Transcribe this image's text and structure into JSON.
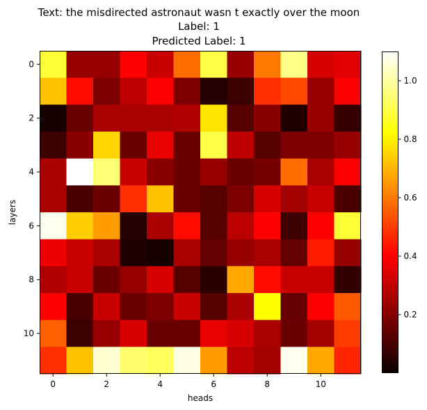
{
  "chart_data": {
    "type": "heatmap",
    "title_lines": [
      "Text: the misdirected astronaut wasn t exactly over the moon",
      "Label: 1",
      "Predicted Label: 1"
    ],
    "xlabel": "heads",
    "ylabel": "layers",
    "x_ticks": [
      0,
      2,
      4,
      6,
      8,
      10
    ],
    "y_ticks": [
      0,
      2,
      4,
      6,
      8,
      10
    ],
    "colormap": "hot",
    "colorbar": {
      "min": 0.0,
      "max": 1.1,
      "ticks": [
        0.2,
        0.4,
        0.6,
        0.8,
        1.0
      ],
      "tick_labels": [
        "0.2",
        "0.4",
        "0.6",
        "0.8",
        "1.0"
      ]
    },
    "values": [
      [
        0.88,
        0.22,
        0.22,
        0.4,
        0.3,
        0.58,
        0.9,
        0.22,
        0.6,
        0.97,
        0.32,
        0.34
      ],
      [
        0.72,
        0.42,
        0.18,
        0.28,
        0.4,
        0.18,
        0.04,
        0.08,
        0.48,
        0.52,
        0.22,
        0.38
      ],
      [
        0.02,
        0.15,
        0.25,
        0.25,
        0.25,
        0.26,
        0.78,
        0.12,
        0.2,
        0.03,
        0.22,
        0.07
      ],
      [
        0.08,
        0.2,
        0.75,
        0.15,
        0.35,
        0.15,
        0.9,
        0.28,
        0.12,
        0.18,
        0.18,
        0.22
      ],
      [
        0.25,
        1.1,
        0.95,
        0.3,
        0.2,
        0.15,
        0.22,
        0.15,
        0.17,
        0.58,
        0.25,
        0.38
      ],
      [
        0.25,
        0.1,
        0.15,
        0.48,
        0.72,
        0.15,
        0.12,
        0.18,
        0.32,
        0.24,
        0.3,
        0.1
      ],
      [
        1.08,
        0.74,
        0.66,
        0.04,
        0.25,
        0.42,
        0.12,
        0.28,
        0.4,
        0.08,
        0.4,
        0.88
      ],
      [
        0.36,
        0.3,
        0.25,
        0.03,
        0.02,
        0.25,
        0.14,
        0.22,
        0.25,
        0.14,
        0.45,
        0.22
      ],
      [
        0.26,
        0.3,
        0.15,
        0.22,
        0.32,
        0.12,
        0.05,
        0.68,
        0.42,
        0.3,
        0.3,
        0.06
      ],
      [
        0.4,
        0.1,
        0.3,
        0.15,
        0.18,
        0.3,
        0.12,
        0.25,
        0.82,
        0.14,
        0.38,
        0.55
      ],
      [
        0.56,
        0.08,
        0.22,
        0.32,
        0.15,
        0.15,
        0.35,
        0.32,
        0.25,
        0.15,
        0.24,
        0.5
      ],
      [
        0.48,
        0.72,
        1.05,
        0.94,
        0.92,
        1.07,
        0.66,
        0.28,
        0.24,
        1.08,
        0.68,
        0.46
      ]
    ]
  }
}
